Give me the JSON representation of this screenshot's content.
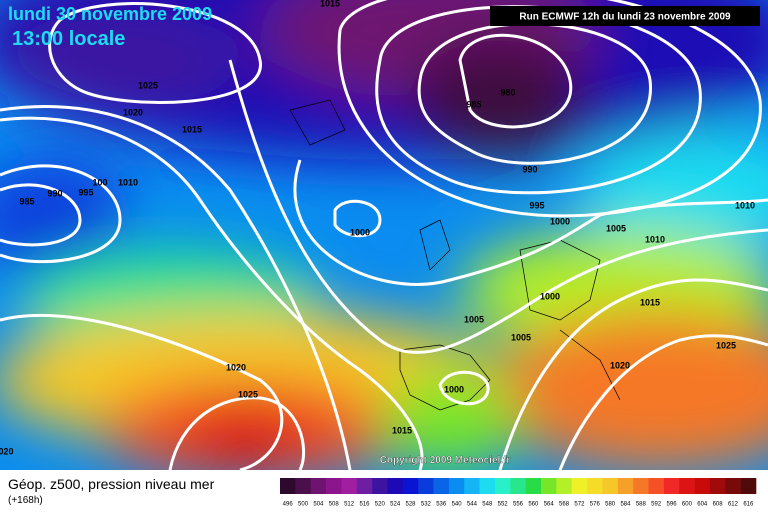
{
  "header": {
    "date": "lundi 30 novembre 2009",
    "time": "13:00 locale",
    "run": "Run ECMWF 12h du lundi 23 novembre 2009"
  },
  "isobar_labels": [
    1015,
    1025,
    1020,
    1015,
    985,
    980,
    990,
    995,
    1000,
    1005,
    1010,
    1010,
    1000,
    1000,
    1005,
    1005,
    1015,
    1025,
    1020,
    1000,
    1015,
    1020,
    1025,
    985,
    990,
    995,
    100,
    1010,
    "020"
  ],
  "footer": {
    "title": "Géop. z500, pression niveau mer",
    "lead": "(+168h)",
    "copyright": "Copyright 2009 Meteociel.fr"
  },
  "legend": {
    "values": [
      496,
      500,
      504,
      508,
      512,
      516,
      520,
      524,
      528,
      532,
      536,
      540,
      544,
      548,
      552,
      556,
      560,
      564,
      568,
      572,
      576,
      580,
      584,
      588,
      592,
      596,
      600,
      604,
      608,
      612,
      616
    ],
    "colors": [
      "#2d0a2d",
      "#4b0f4b",
      "#6e1470",
      "#8c148c",
      "#a01ea0",
      "#6e1ea0",
      "#3c14a0",
      "#1e0ab4",
      "#0a14d2",
      "#0a3cdc",
      "#0a64e6",
      "#0a8cf0",
      "#14b4f5",
      "#1edcf0",
      "#28f0c8",
      "#28e68c",
      "#28dc46",
      "#78e628",
      "#b4f028",
      "#f0f028",
      "#f5dc28",
      "#f5c828",
      "#f5a028",
      "#f57828",
      "#f55028",
      "#f02828",
      "#dc1414",
      "#c80a0a",
      "#a00a0a",
      "#780a0a",
      "#500a0a"
    ]
  }
}
